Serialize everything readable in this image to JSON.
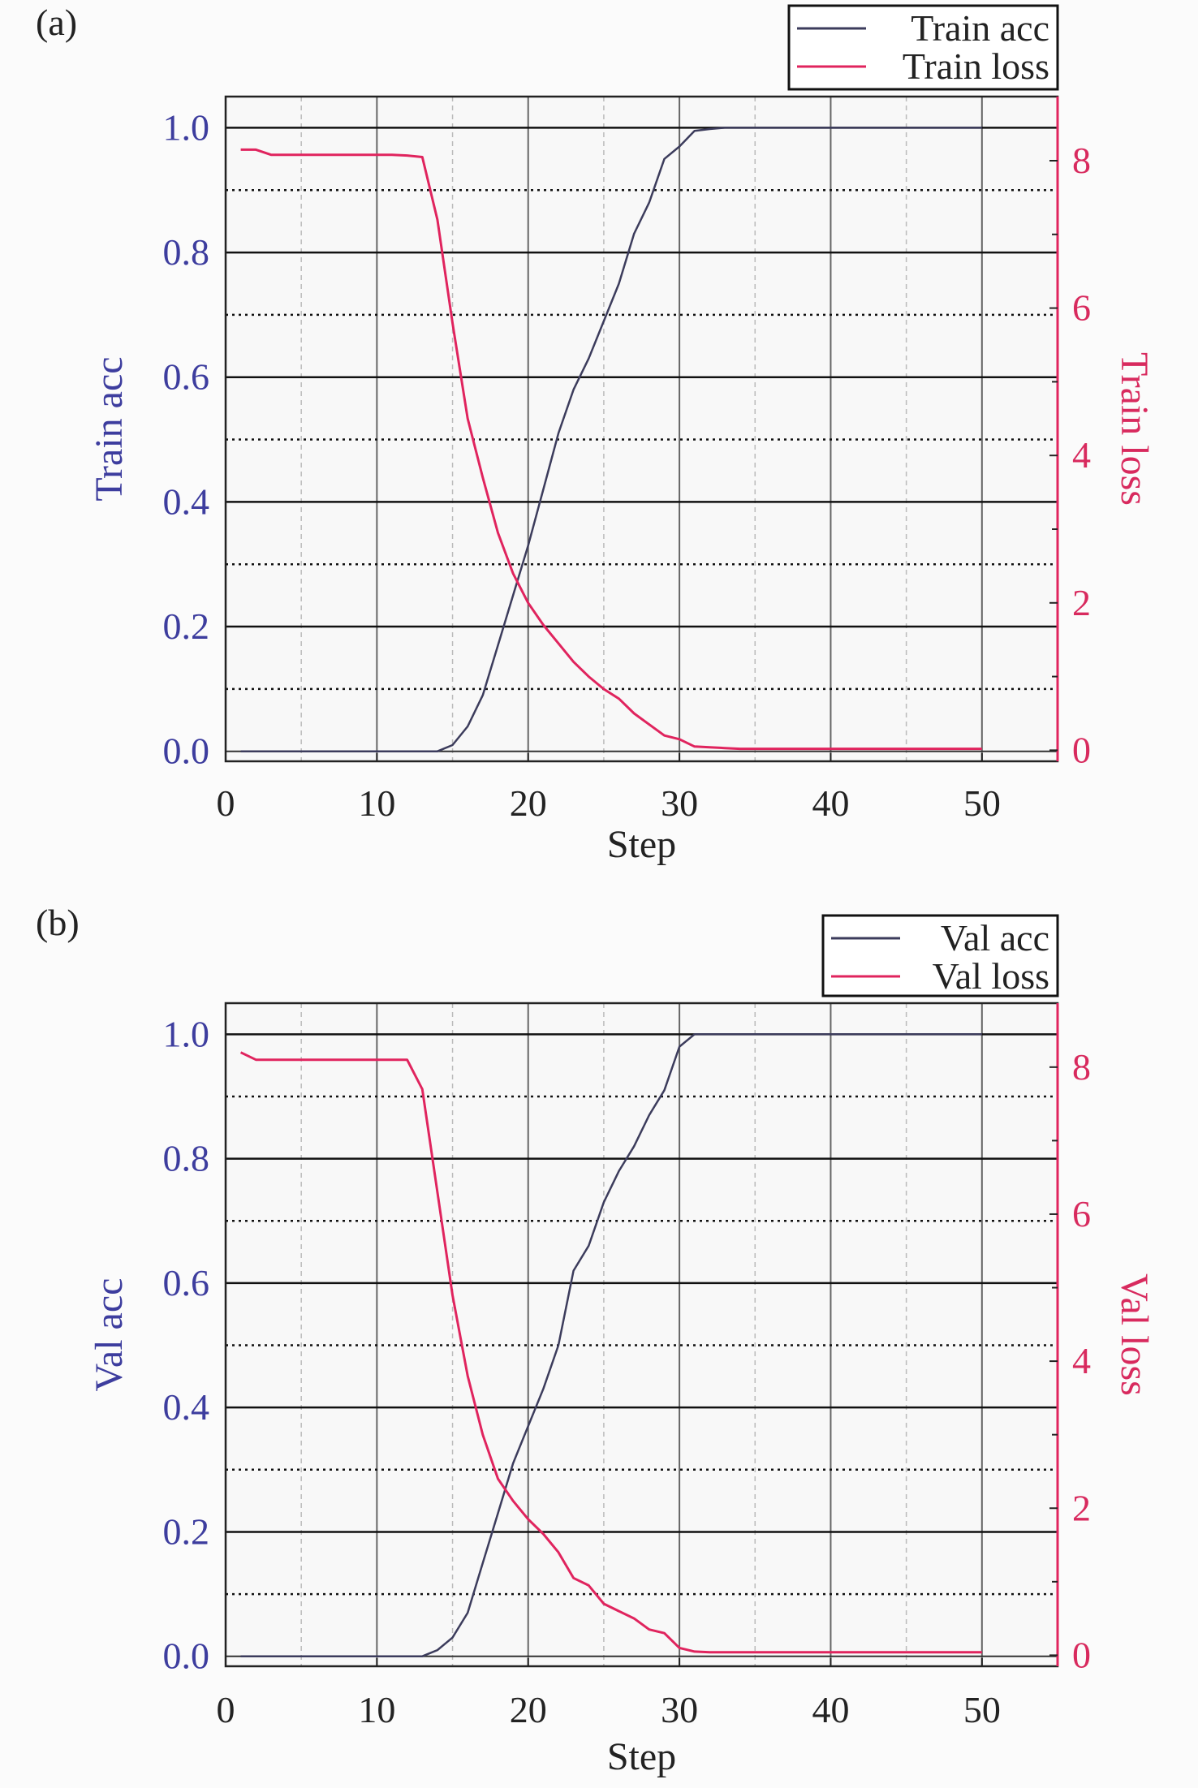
{
  "colors": {
    "acc": "#3c3c5c",
    "loss": "#e0245e",
    "left_axis": "#3d3d9e",
    "right_axis": "#d82a5e",
    "background": "#fbfbfb"
  },
  "chart_data": [
    {
      "type": "line",
      "panel_label": "(a)",
      "xlabel": "Step",
      "ylabel": "Train acc",
      "y2label": "Train loss",
      "xlim": [
        0,
        55
      ],
      "ylim": [
        -0.016,
        1.05
      ],
      "y2lim": [
        -0.15,
        8.87
      ],
      "xticks": [
        0,
        10,
        20,
        30,
        40,
        50
      ],
      "yticks": [
        "0.0",
        "0.2",
        "0.4",
        "0.6",
        "0.8",
        "1.0"
      ],
      "y2ticks": [
        0,
        2,
        4,
        6,
        8
      ],
      "grid": true,
      "legend_position": "top-right",
      "x": [
        1,
        2,
        3,
        4,
        5,
        6,
        7,
        8,
        9,
        10,
        11,
        12,
        13,
        14,
        15,
        16,
        17,
        18,
        19,
        20,
        21,
        22,
        23,
        24,
        25,
        26,
        27,
        28,
        29,
        30,
        31,
        32,
        33,
        34,
        35,
        36,
        37,
        38,
        39,
        40,
        41,
        42,
        43,
        44,
        45,
        46,
        47,
        48,
        49,
        50
      ],
      "series": [
        {
          "name": "Train acc",
          "axis": "left",
          "values": [
            0,
            0,
            0,
            0,
            0,
            0,
            0,
            0,
            0,
            0,
            0,
            0,
            0,
            0,
            0.01,
            0.04,
            0.09,
            0.17,
            0.25,
            0.33,
            0.42,
            0.51,
            0.58,
            0.63,
            0.69,
            0.75,
            0.83,
            0.88,
            0.95,
            0.97,
            0.995,
            0.998,
            1,
            1,
            1,
            1,
            1,
            1,
            1,
            1,
            1,
            1,
            1,
            1,
            1,
            1,
            1,
            1,
            1,
            1
          ]
        },
        {
          "name": "Train loss",
          "axis": "right",
          "values": [
            8.15,
            8.15,
            8.08,
            8.08,
            8.08,
            8.08,
            8.08,
            8.08,
            8.08,
            8.08,
            8.08,
            8.07,
            8.05,
            7.2,
            5.8,
            4.5,
            3.7,
            2.95,
            2.4,
            2.0,
            1.7,
            1.45,
            1.2,
            1.0,
            0.83,
            0.7,
            0.5,
            0.35,
            0.2,
            0.15,
            0.05,
            0.04,
            0.03,
            0.02,
            0.02,
            0.02,
            0.02,
            0.02,
            0.02,
            0.02,
            0.02,
            0.02,
            0.02,
            0.02,
            0.02,
            0.02,
            0.02,
            0.02,
            0.02,
            0.02
          ]
        }
      ]
    },
    {
      "type": "line",
      "panel_label": "(b)",
      "xlabel": "Step",
      "ylabel": "Val acc",
      "y2label": "Val loss",
      "xlim": [
        0,
        55
      ],
      "ylim": [
        -0.016,
        1.05
      ],
      "y2lim": [
        -0.15,
        8.87
      ],
      "xticks": [
        0,
        10,
        20,
        30,
        40,
        50
      ],
      "yticks": [
        "0.0",
        "0.2",
        "0.4",
        "0.6",
        "0.8",
        "1.0"
      ],
      "y2ticks": [
        0,
        2,
        4,
        6,
        8
      ],
      "grid": true,
      "legend_position": "top-right",
      "x": [
        1,
        2,
        3,
        4,
        5,
        6,
        7,
        8,
        9,
        10,
        11,
        12,
        13,
        14,
        15,
        16,
        17,
        18,
        19,
        20,
        21,
        22,
        23,
        24,
        25,
        26,
        27,
        28,
        29,
        30,
        31,
        32,
        33,
        34,
        35,
        36,
        37,
        38,
        39,
        40,
        41,
        42,
        43,
        44,
        45,
        46,
        47,
        48,
        49,
        50
      ],
      "series": [
        {
          "name": "Val acc",
          "axis": "left",
          "values": [
            0,
            0,
            0,
            0,
            0,
            0,
            0,
            0,
            0,
            0,
            0,
            0,
            0,
            0.01,
            0.03,
            0.07,
            0.15,
            0.23,
            0.31,
            0.37,
            0.43,
            0.5,
            0.62,
            0.66,
            0.73,
            0.78,
            0.82,
            0.87,
            0.91,
            0.98,
            1,
            1,
            1,
            1,
            1,
            1,
            1,
            1,
            1,
            1,
            1,
            1,
            1,
            1,
            1,
            1,
            1,
            1,
            1,
            1
          ]
        },
        {
          "name": "Val loss",
          "axis": "right",
          "values": [
            8.2,
            8.1,
            8.1,
            8.1,
            8.1,
            8.1,
            8.1,
            8.1,
            8.1,
            8.1,
            8.1,
            8.1,
            7.7,
            6.3,
            4.9,
            3.8,
            3.0,
            2.4,
            2.1,
            1.85,
            1.65,
            1.4,
            1.05,
            0.95,
            0.7,
            0.6,
            0.5,
            0.35,
            0.3,
            0.1,
            0.05,
            0.04,
            0.04,
            0.04,
            0.04,
            0.04,
            0.04,
            0.04,
            0.04,
            0.04,
            0.04,
            0.04,
            0.04,
            0.04,
            0.04,
            0.04,
            0.04,
            0.04,
            0.04,
            0.04
          ]
        }
      ]
    }
  ]
}
